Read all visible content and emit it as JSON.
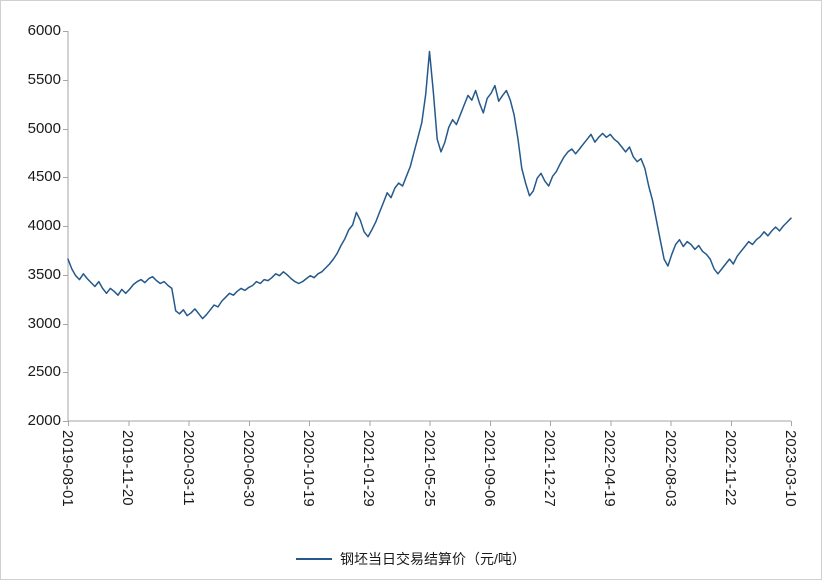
{
  "chart_data": {
    "type": "line",
    "title": "",
    "xlabel": "",
    "ylabel": "",
    "ylim": [
      2000,
      6000
    ],
    "grid": false,
    "legend_position": "bottom",
    "x_ticks": [
      "2019-08-01",
      "2019-11-20",
      "2020-03-11",
      "2020-06-30",
      "2020-10-19",
      "2021-01-29",
      "2021-05-25",
      "2021-09-06",
      "2021-12-27",
      "2022-04-19",
      "2022-08-03",
      "2022-11-22",
      "2023-03-10"
    ],
    "y_ticks": [
      6000,
      5500,
      5000,
      4500,
      4000,
      3500,
      3000,
      2500,
      2000
    ],
    "series": [
      {
        "name": "钢坯当日交易结算价（元/吨）",
        "color": "#26598b",
        "values": [
          3660,
          3560,
          3490,
          3450,
          3510,
          3460,
          3420,
          3380,
          3430,
          3360,
          3310,
          3360,
          3330,
          3290,
          3350,
          3310,
          3350,
          3400,
          3430,
          3450,
          3420,
          3460,
          3480,
          3440,
          3410,
          3430,
          3390,
          3360,
          3130,
          3100,
          3140,
          3080,
          3110,
          3150,
          3100,
          3050,
          3090,
          3140,
          3190,
          3170,
          3230,
          3270,
          3310,
          3290,
          3330,
          3360,
          3340,
          3370,
          3390,
          3430,
          3410,
          3450,
          3440,
          3470,
          3510,
          3490,
          3530,
          3500,
          3460,
          3430,
          3410,
          3430,
          3460,
          3490,
          3470,
          3510,
          3530,
          3570,
          3610,
          3660,
          3720,
          3800,
          3870,
          3960,
          4010,
          4140,
          4060,
          3940,
          3890,
          3960,
          4040,
          4140,
          4240,
          4340,
          4290,
          4390,
          4440,
          4410,
          4510,
          4610,
          4760,
          4910,
          5060,
          5350,
          5790,
          5380,
          4890,
          4760,
          4860,
          5010,
          5090,
          5040,
          5140,
          5240,
          5340,
          5290,
          5390,
          5260,
          5160,
          5310,
          5360,
          5440,
          5280,
          5340,
          5390,
          5290,
          5140,
          4890,
          4590,
          4440,
          4310,
          4360,
          4490,
          4540,
          4460,
          4410,
          4510,
          4560,
          4640,
          4710,
          4760,
          4790,
          4740,
          4790,
          4840,
          4890,
          4940,
          4860,
          4910,
          4950,
          4910,
          4940,
          4890,
          4860,
          4810,
          4760,
          4810,
          4710,
          4660,
          4690,
          4590,
          4410,
          4260,
          4060,
          3860,
          3660,
          3590,
          3710,
          3810,
          3860,
          3790,
          3840,
          3810,
          3760,
          3800,
          3740,
          3710,
          3660,
          3560,
          3510,
          3560,
          3610,
          3660,
          3610,
          3690,
          3740,
          3790,
          3840,
          3810,
          3860,
          3890,
          3940,
          3900,
          3950,
          3990,
          3950,
          4000,
          4040,
          4080
        ]
      }
    ],
    "axis_color": "#a6a6a6",
    "text_color": "#1a1a1a"
  }
}
